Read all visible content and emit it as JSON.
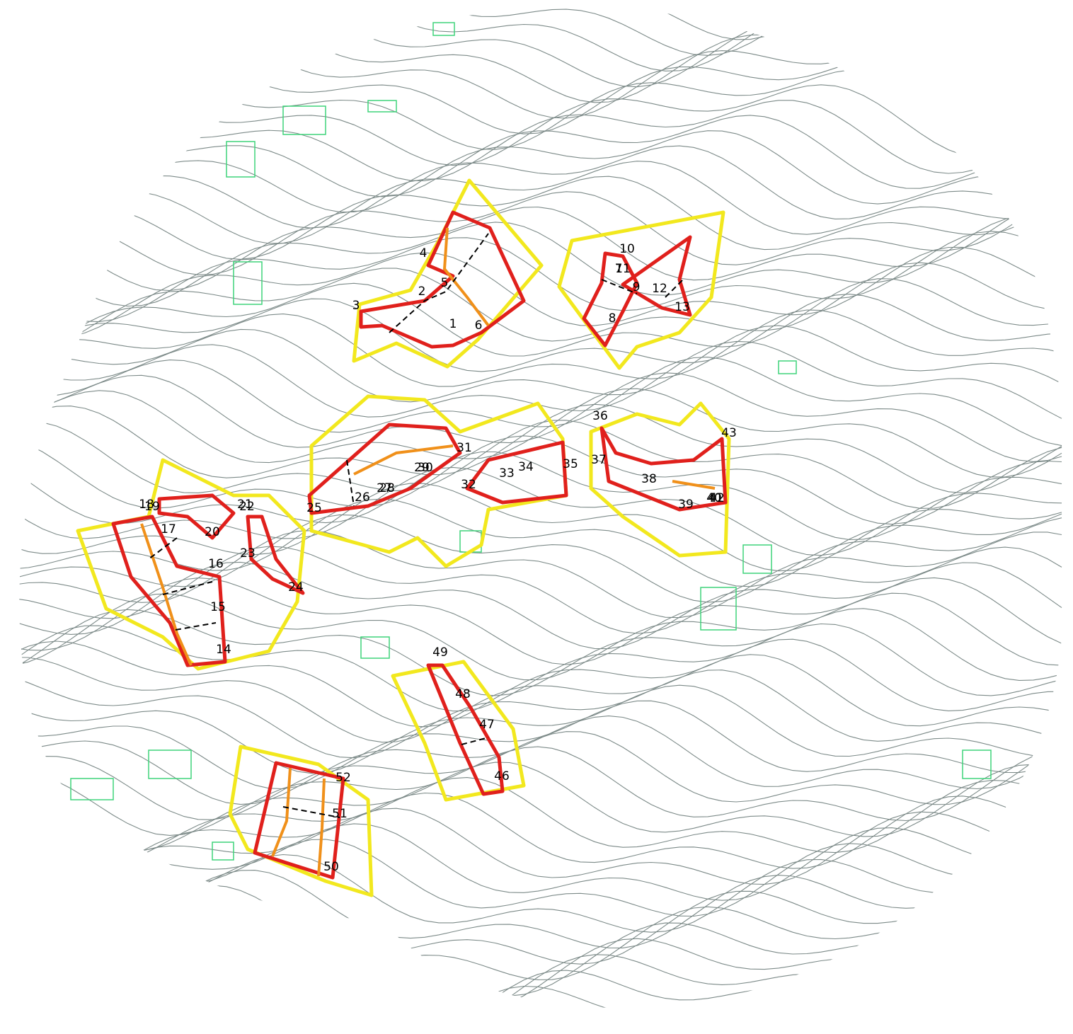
{
  "labels": [
    "1",
    "2",
    "3",
    "4",
    "5",
    "6",
    "7",
    "8",
    "9",
    "10",
    "11",
    "12",
    "13",
    "14",
    "15",
    "16",
    "17",
    "18",
    "19",
    "20",
    "21",
    "22",
    "23",
    "24",
    "25",
    "26",
    "27",
    "28",
    "29",
    "30",
    "31",
    "32",
    "33",
    "34",
    "35",
    "36",
    "37",
    "38",
    "39",
    "40",
    "41",
    "42",
    "43",
    "46",
    "47",
    "48",
    "49",
    "50",
    "51",
    "52"
  ]
}
